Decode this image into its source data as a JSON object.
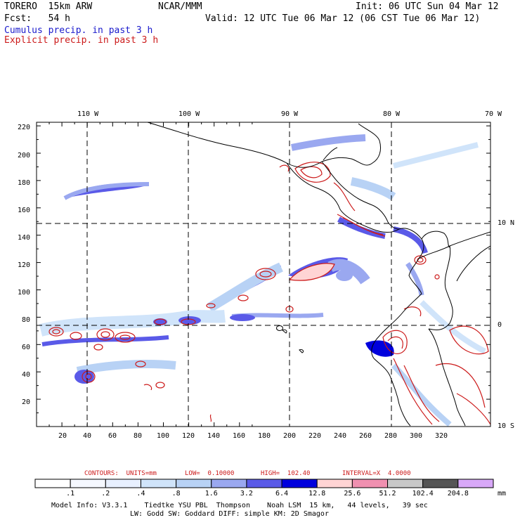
{
  "header": {
    "model_title": "TORERO  15km ARW",
    "org": "NCAR/MMM",
    "init_label": "Init: 06 UTC Sun 04 Mar 12",
    "fcst_label": "Fcst:   54 h",
    "valid_label": "Valid: 12 UTC Tue 06 Mar 12 (06 CST Tue 06 Mar 12)",
    "field1": "Cumulus precip. in past 3 h",
    "field2": "Explicit precip. in past 3 h"
  },
  "colors": {
    "field1": "#1a1acc",
    "field2": "#cc1a1a"
  },
  "map": {
    "top_lon_labels": [
      "110 W",
      "100 W",
      "90 W",
      "80 W",
      "70 W"
    ],
    "right_lat_labels": [
      "10 N",
      "0",
      "10 S"
    ],
    "y_ticks": [
      "20",
      "40",
      "60",
      "80",
      "100",
      "120",
      "140",
      "160",
      "180",
      "200",
      "220"
    ],
    "x_ticks": [
      "20",
      "40",
      "60",
      "80",
      "100",
      "120",
      "140",
      "160",
      "180",
      "200",
      "220",
      "240",
      "260",
      "280",
      "300",
      "320"
    ]
  },
  "legend": {
    "contours": "CONTOURS:  UNITS=mm",
    "low": "LOW=  0.10000",
    "high": "HIGH=  102.40",
    "interval": "INTERVAL=X  4.0000",
    "units": "mm",
    "bins": [
      ".1",
      ".2",
      ".4",
      ".8",
      "1.6",
      "3.2",
      "6.4",
      "12.8",
      "25.6",
      "51.2",
      "102.4",
      "204.8"
    ],
    "bin_colors": [
      "#ffffff",
      "#f5f8ff",
      "#e8f0ff",
      "#d0e4fa",
      "#b8d2f5",
      "#9aa8f0",
      "#5a5ae8",
      "#0000dd",
      "#ffd4d4",
      "#f090b0",
      "#c8c8c8",
      "#555555",
      "#d8a8f8"
    ]
  },
  "footer": {
    "line1": "Model Info: V3.3.1    Tiedtke YSU PBL  Thompson    Noah LSM  15 km,   44 levels,   39 sec",
    "line2": "LW: Godd SW: Goddard DIFF: simple KM: 2D Smagor"
  }
}
